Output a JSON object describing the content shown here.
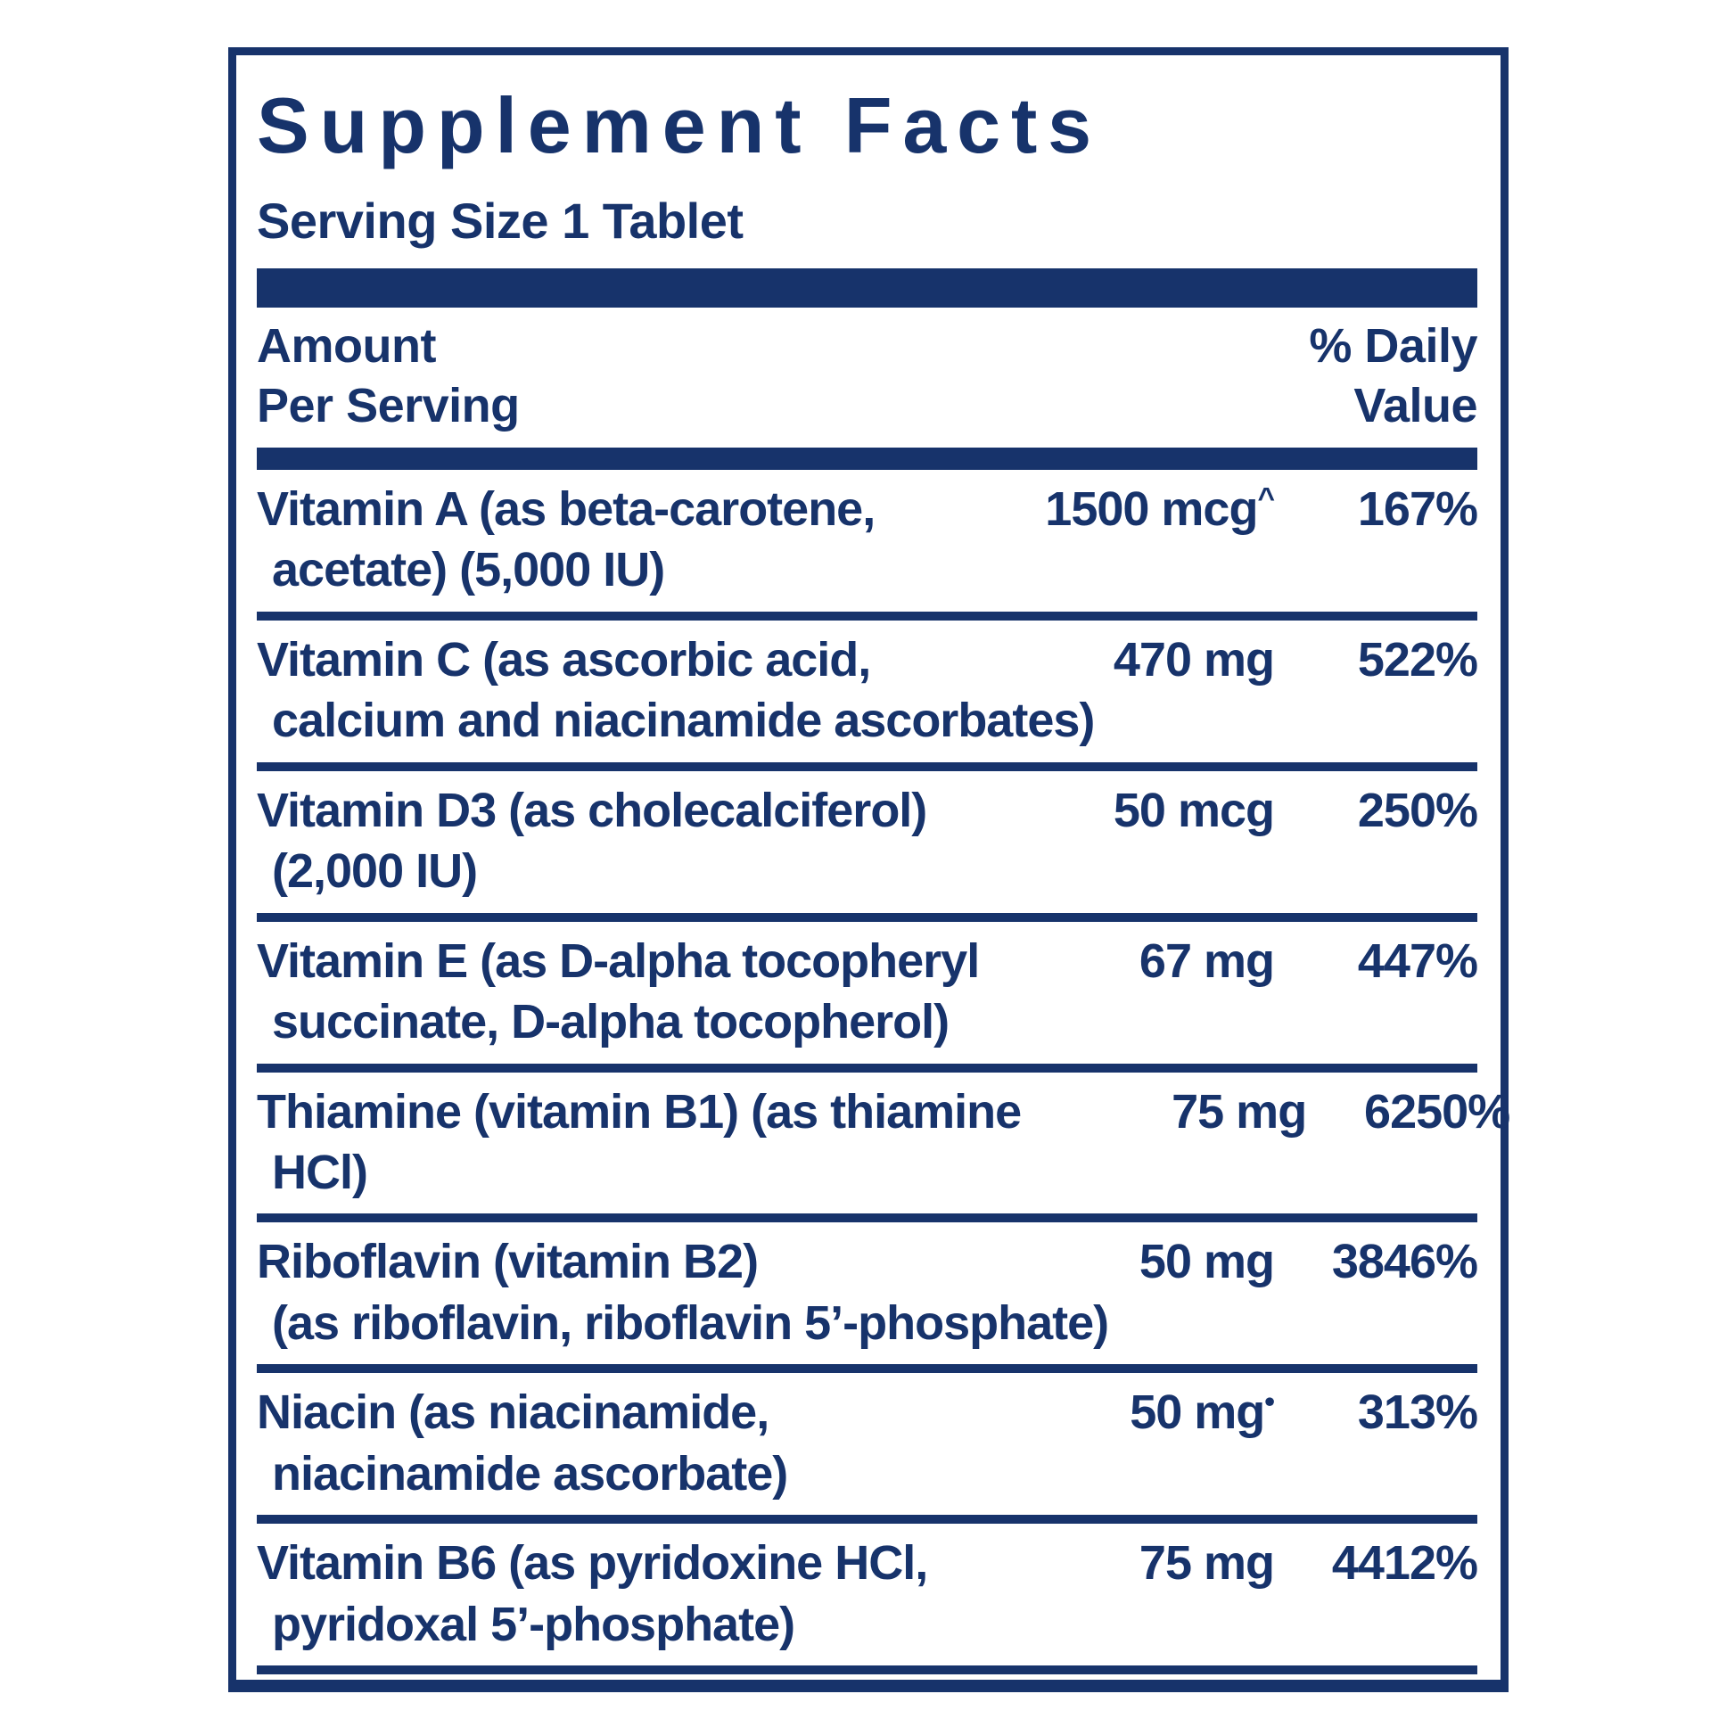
{
  "label": {
    "title": "Supplement Facts",
    "serving_size": "Serving Size 1 Tablet",
    "header": {
      "amount_line1": "Amount",
      "amount_line2": "Per Serving",
      "dv_line1": "% Daily",
      "dv_line2": "Value"
    },
    "colors": {
      "navy": "#17336b",
      "background": "#ffffff"
    },
    "rows": [
      {
        "name1": "Vitamin A (as beta-carotene,",
        "name2": "acetate) (5,000 IU)",
        "amount": "1500 mcg",
        "amount_sup": "^",
        "dv": "167%"
      },
      {
        "name1": "Vitamin C (as ascorbic acid,",
        "name2": "calcium and niacinamide ascorbates)",
        "amount": "470 mg",
        "amount_sup": "",
        "dv": "522%"
      },
      {
        "name1": "Vitamin D3 (as cholecalciferol)",
        "name2": "(2,000 IU)",
        "amount": "50 mcg",
        "amount_sup": "",
        "dv": "250%"
      },
      {
        "name1": "Vitamin E (as D-alpha tocopheryl",
        "name2": "succinate, D-alpha tocopherol)",
        "amount": "67 mg",
        "amount_sup": "",
        "dv": "447%"
      },
      {
        "name1": "Thiamine (vitamin B1) (as thiamine",
        "name2": "HCl)",
        "amount": "75 mg",
        "amount_sup": "",
        "dv": "6250%"
      },
      {
        "name1": "Riboflavin (vitamin B2)",
        "name2": "(as riboflavin, riboflavin 5’-phosphate)",
        "amount": "50 mg",
        "amount_sup": "",
        "dv": "3846%"
      },
      {
        "name1": "Niacin (as niacinamide,",
        "name2": "niacinamide ascorbate)",
        "amount": "50 mg",
        "amount_sup": "•",
        "dv": "313%"
      },
      {
        "name1": "Vitamin B6 (as pyridoxine HCl,",
        "name2": "pyridoxal 5’-phosphate)",
        "amount": "75 mg",
        "amount_sup": "",
        "dv": "4412%"
      }
    ]
  }
}
